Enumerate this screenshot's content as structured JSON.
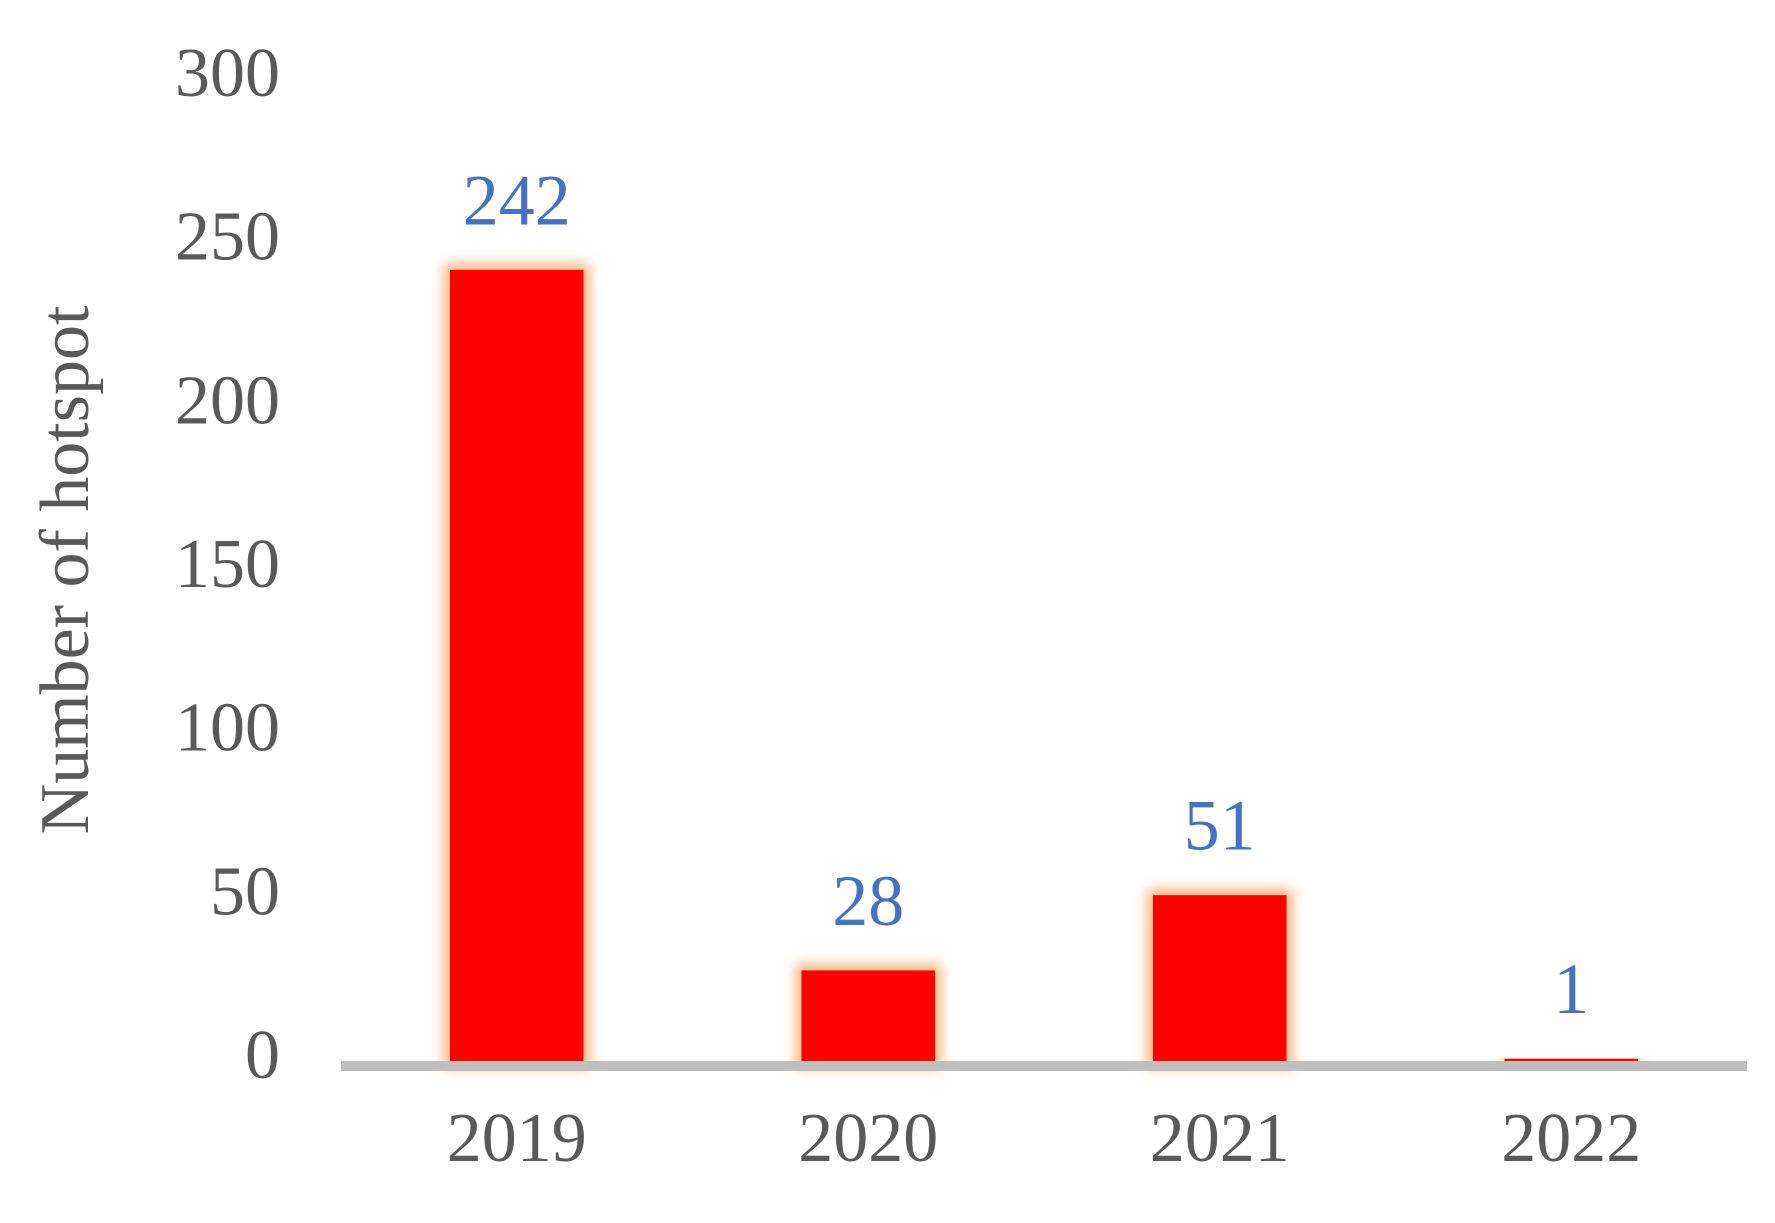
{
  "chart_data": {
    "type": "bar",
    "y_label": "Number of hotspot",
    "categories": [
      "2019",
      "2020",
      "2021",
      "2022"
    ],
    "values": [
      242,
      28,
      51,
      1
    ],
    "color": "#ff0000",
    "value_label_color": "#4472c4",
    "ylim": [
      0,
      300
    ],
    "yticks": [
      0,
      50,
      100,
      150,
      200,
      250,
      300
    ],
    "grid": false
  }
}
